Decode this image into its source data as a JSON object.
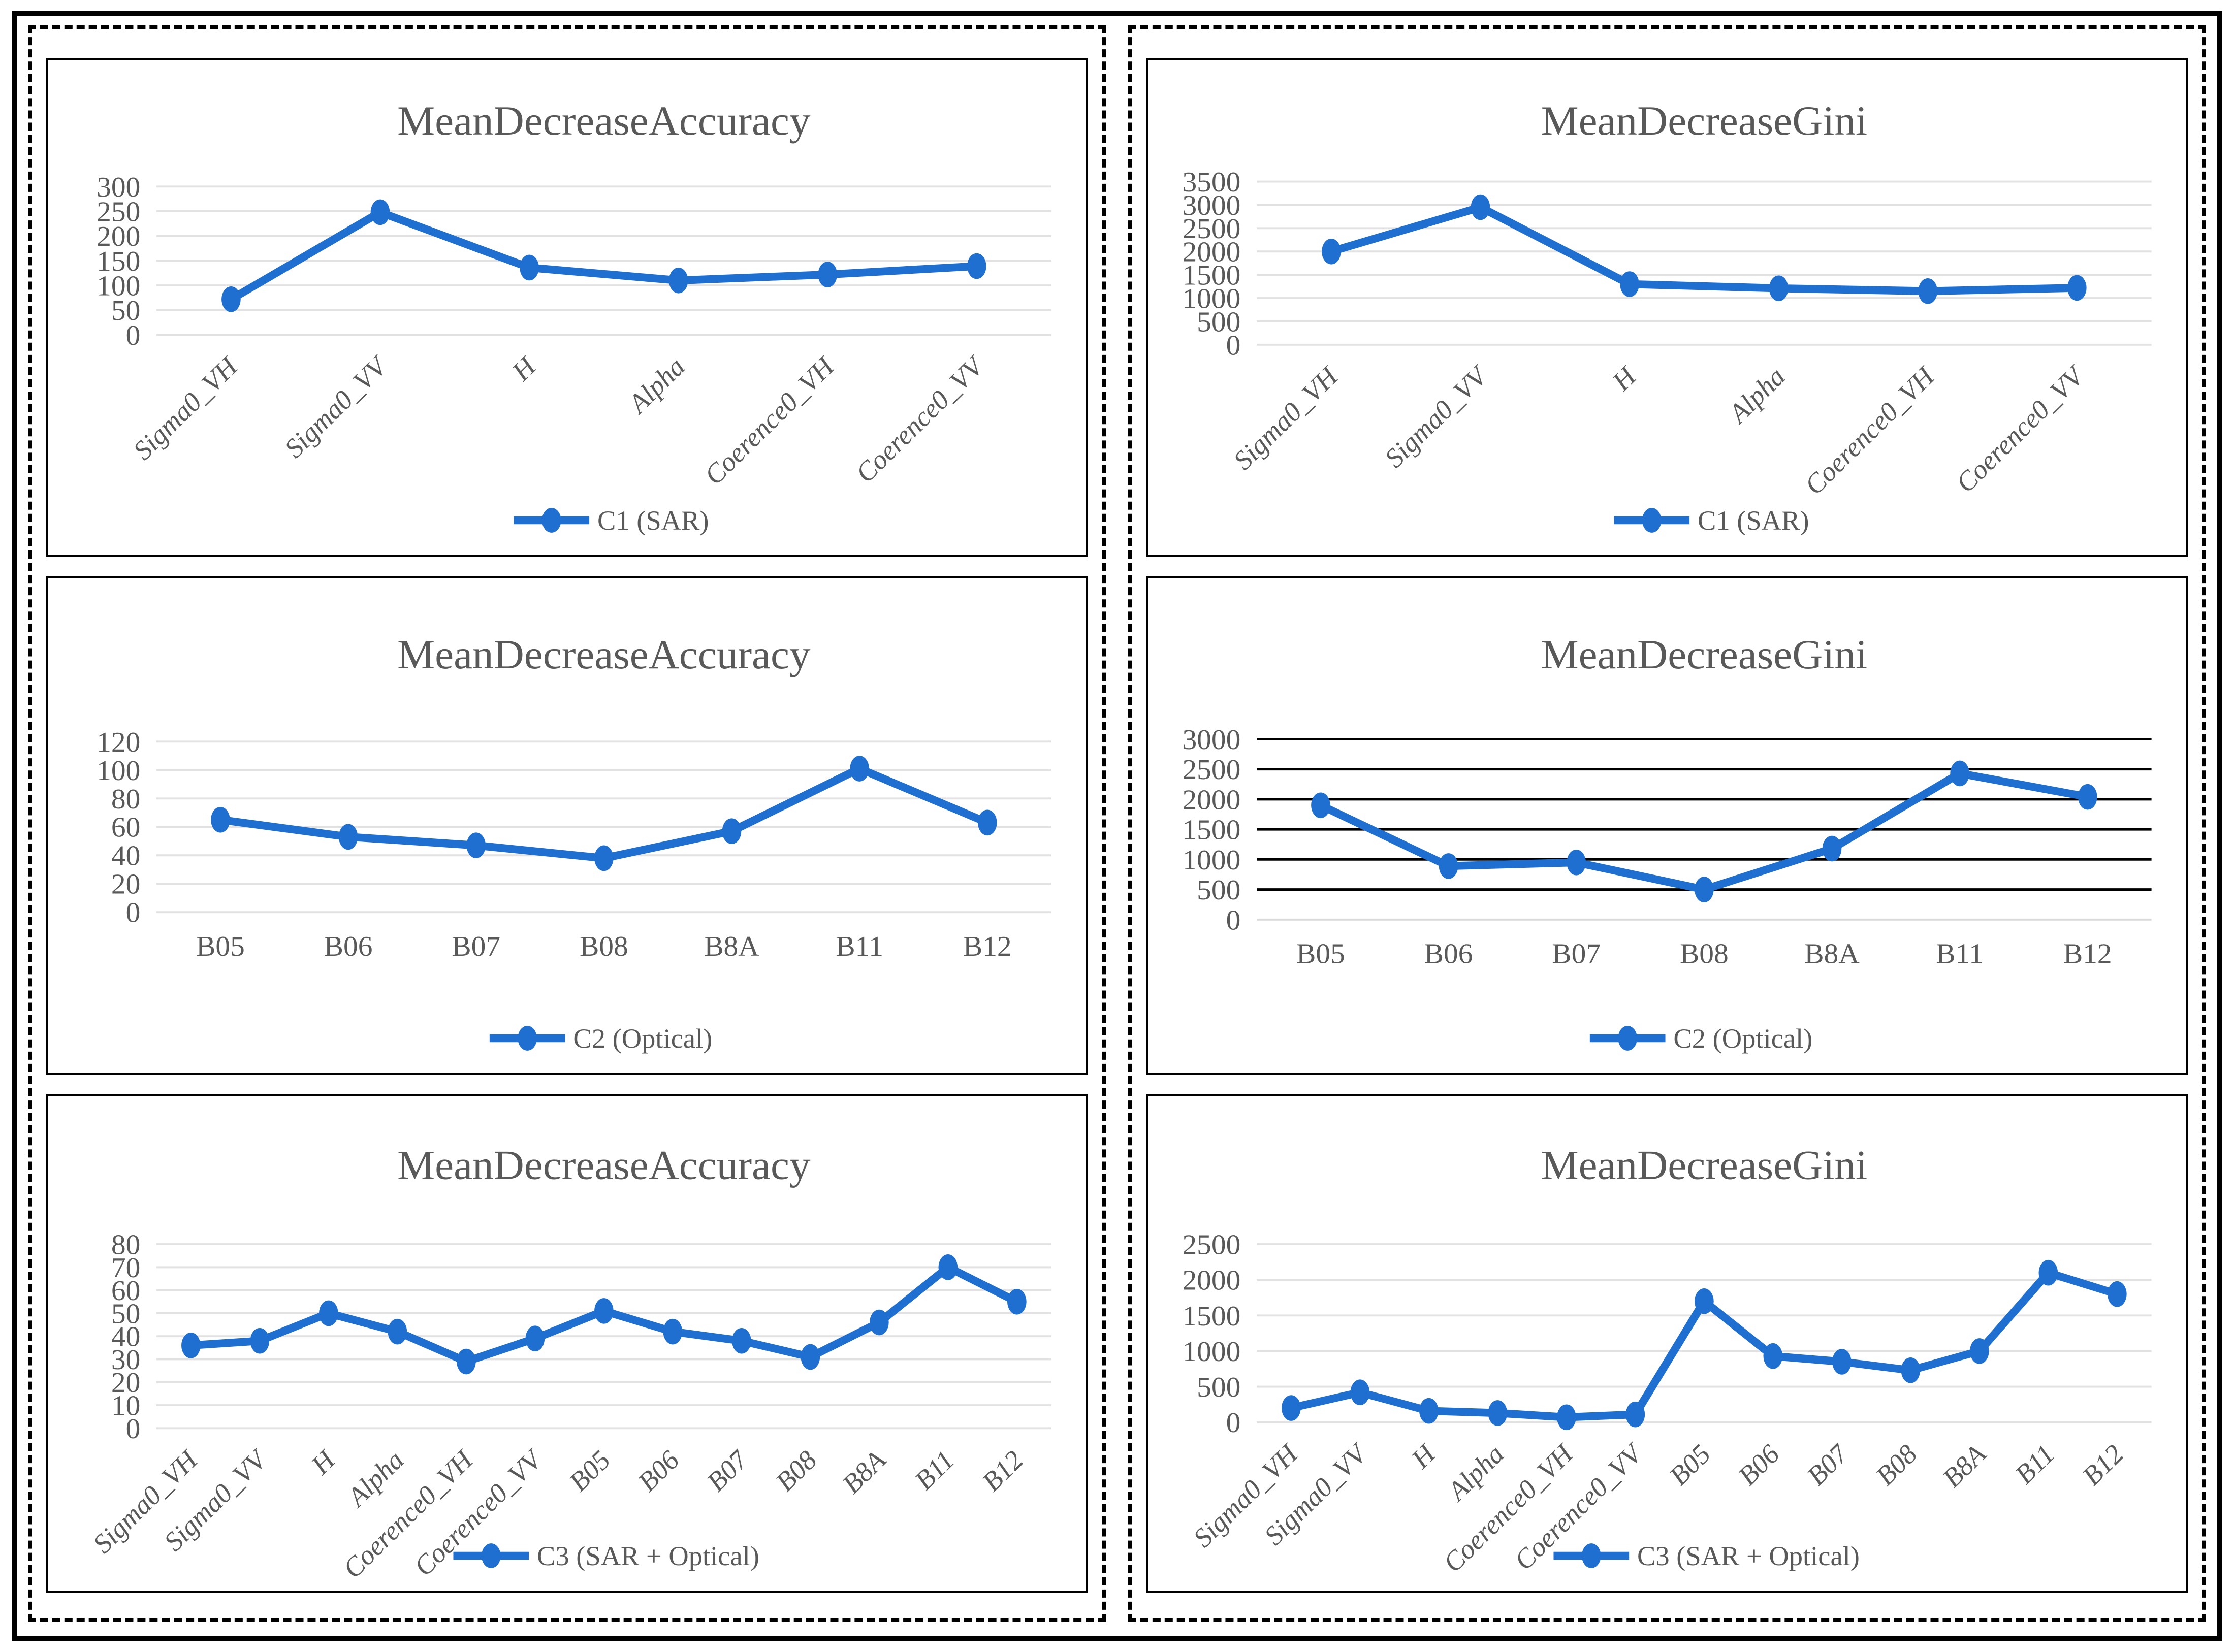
{
  "colors": {
    "line": "#1E6FD0",
    "text": "#595959",
    "grid_light": "#E2E2E2",
    "grid_dark": "#000000",
    "border": "#000000"
  },
  "chart_data": [
    {
      "type": "line",
      "title": "MeanDecreaseAccuracy",
      "legend": "C1 (SAR)",
      "legend_position": "bottom",
      "categories": [
        "Sigma0_VH",
        "Sigma0_VV",
        "H",
        "Alpha",
        "Coerence0_VH",
        "Coerence0_VV"
      ],
      "values": [
        72,
        248,
        136,
        110,
        122,
        139
      ],
      "yticks": [
        0,
        50,
        100,
        150,
        200,
        250,
        300
      ],
      "ylim": [
        0,
        300
      ],
      "grid": true,
      "grid_color": "#E2E2E2",
      "zero_line_color": "#E2E2E2",
      "x_labels_rotated": true,
      "x_labels_italic": true
    },
    {
      "type": "line",
      "title": "MeanDecreaseGini",
      "legend": "C1 (SAR)",
      "legend_position": "bottom",
      "categories": [
        "Sigma0_VH",
        "Sigma0_VV",
        "H",
        "Alpha",
        "Coerence0_VH",
        "Coerence0_VV"
      ],
      "values": [
        2000,
        2950,
        1300,
        1210,
        1150,
        1220
      ],
      "yticks": [
        0,
        500,
        1000,
        1500,
        2000,
        2500,
        3000,
        3500
      ],
      "ylim": [
        0,
        3500
      ],
      "grid": true,
      "grid_color": "#E2E2E2",
      "zero_line_color": "#E2E2E2",
      "x_labels_rotated": true,
      "x_labels_italic": true
    },
    {
      "type": "line",
      "title": "MeanDecreaseAccuracy",
      "legend": "C2 (Optical)",
      "legend_position": "bottom",
      "categories": [
        "B05",
        "B06",
        "B07",
        "B08",
        "B8A",
        "B11",
        "B12"
      ],
      "values": [
        65,
        53,
        47,
        38,
        57,
        101,
        63
      ],
      "yticks": [
        0,
        20,
        40,
        60,
        80,
        100,
        120
      ],
      "ylim": [
        0,
        120
      ],
      "grid": true,
      "grid_color": "#E2E2E2",
      "zero_line_color": "#E2E2E2",
      "x_labels_rotated": false,
      "x_labels_italic": false
    },
    {
      "type": "line",
      "title": "MeanDecreaseGini",
      "legend": "C2 (Optical)",
      "legend_position": "bottom",
      "categories": [
        "B05",
        "B06",
        "B07",
        "B08",
        "B8A",
        "B11",
        "B12"
      ],
      "values": [
        1900,
        890,
        950,
        500,
        1180,
        2430,
        2040
      ],
      "yticks": [
        0,
        500,
        1000,
        1500,
        2000,
        2500,
        3000
      ],
      "ylim": [
        0,
        3000
      ],
      "grid": true,
      "grid_color": "#000000",
      "zero_line_color": "#D9D9D9",
      "x_labels_rotated": false,
      "x_labels_italic": false
    },
    {
      "type": "line",
      "title": "MeanDecreaseAccuracy",
      "legend": "C3 (SAR + Optical)",
      "legend_position": "bottom",
      "categories": [
        "Sigma0_VH",
        "Sigma0_VV",
        "H",
        "Alpha",
        "Coerence0_VH",
        "Coerence0_VV",
        "B05",
        "B06",
        "B07",
        "B08",
        "B8A",
        "B11",
        "B12"
      ],
      "values": [
        36,
        38,
        50,
        42,
        29,
        39,
        51,
        42,
        38,
        31,
        46,
        70,
        55
      ],
      "yticks": [
        0,
        10,
        20,
        30,
        40,
        50,
        60,
        70,
        80
      ],
      "ylim": [
        0,
        80
      ],
      "grid": true,
      "grid_color": "#E2E2E2",
      "zero_line_color": "#E2E2E2",
      "x_labels_rotated": true,
      "x_labels_italic": true
    },
    {
      "type": "line",
      "title": "MeanDecreaseGini",
      "legend": "C3 (SAR + Optical)",
      "legend_position": "bottom",
      "categories": [
        "Sigma0_VH",
        "Sigma0_VV",
        "H",
        "Alpha",
        "Coerence0_VH",
        "Coerence0_VV",
        "B05",
        "B06",
        "B07",
        "B08",
        "B8A",
        "B11",
        "B12"
      ],
      "values": [
        200,
        420,
        160,
        130,
        70,
        110,
        1700,
        930,
        850,
        730,
        1000,
        2100,
        1800
      ],
      "yticks": [
        0,
        500,
        1000,
        1500,
        2000,
        2500
      ],
      "ylim": [
        0,
        2500
      ],
      "grid": true,
      "grid_color": "#E2E2E2",
      "zero_line_color": "#E2E2E2",
      "x_labels_rotated": true,
      "x_labels_italic": true
    }
  ]
}
